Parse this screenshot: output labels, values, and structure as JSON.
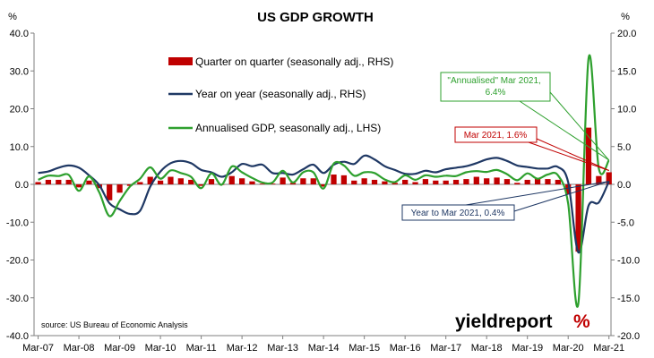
{
  "chart_data": {
    "type": "bar",
    "title": "US GDP GROWTH",
    "left_unit": "%",
    "right_unit": "%",
    "ylim_left": [
      -40,
      40
    ],
    "ylim_right": [
      -20,
      20
    ],
    "yticks_left": [
      "40.0",
      "30.0",
      "20.0",
      "10.0",
      "0.0",
      "-10.0",
      "-20.0",
      "-30.0",
      "-40.0"
    ],
    "yticks_right": [
      "20.0",
      "15.0",
      "10.0",
      "5.0",
      "0.0",
      "-5.0",
      "-10.0",
      "-15.0",
      "-20.0"
    ],
    "xticks": [
      "Mar-07",
      "Mar-08",
      "Mar-09",
      "Mar-10",
      "Mar-11",
      "Mar-12",
      "Mar-13",
      "Mar-14",
      "Mar-15",
      "Mar-16",
      "Mar-17",
      "Mar-18",
      "Mar-19",
      "Mar-20",
      "Mar-21"
    ],
    "grid": false,
    "legend_position": "top-center",
    "colors": {
      "qoq": "#c00000",
      "yoy": "#1f3864",
      "annualised": "#2ea02e"
    },
    "quarters": [
      "Mar-07",
      "Jun-07",
      "Sep-07",
      "Dec-07",
      "Mar-08",
      "Jun-08",
      "Sep-08",
      "Dec-08",
      "Mar-09",
      "Jun-09",
      "Sep-09",
      "Dec-09",
      "Mar-10",
      "Jun-10",
      "Sep-10",
      "Dec-10",
      "Mar-11",
      "Jun-11",
      "Sep-11",
      "Dec-11",
      "Mar-12",
      "Jun-12",
      "Sep-12",
      "Dec-12",
      "Mar-13",
      "Jun-13",
      "Sep-13",
      "Dec-13",
      "Mar-14",
      "Jun-14",
      "Sep-14",
      "Dec-14",
      "Mar-15",
      "Jun-15",
      "Sep-15",
      "Dec-15",
      "Mar-16",
      "Jun-16",
      "Sep-16",
      "Dec-16",
      "Mar-17",
      "Jun-17",
      "Sep-17",
      "Dec-17",
      "Mar-18",
      "Jun-18",
      "Sep-18",
      "Dec-18",
      "Mar-19",
      "Jun-19",
      "Sep-19",
      "Dec-19",
      "Mar-20",
      "Jun-20",
      "Sep-20",
      "Dec-20",
      "Mar-21"
    ],
    "series": [
      {
        "name": "Quarter on quarter (seasonally adj., RHS)",
        "axis": "right",
        "kind": "bar",
        "values": [
          0.3,
          0.6,
          0.6,
          0.6,
          -0.4,
          0.5,
          -0.5,
          -2.1,
          -1.1,
          -0.2,
          0.3,
          1.0,
          0.5,
          1.0,
          0.8,
          0.6,
          -0.2,
          0.7,
          0.0,
          1.1,
          0.8,
          0.4,
          0.1,
          0.1,
          0.9,
          0.2,
          0.8,
          0.8,
          -0.3,
          1.3,
          1.2,
          0.5,
          0.8,
          0.6,
          0.4,
          0.2,
          0.6,
          0.3,
          0.7,
          0.5,
          0.5,
          0.6,
          0.7,
          1.0,
          0.8,
          0.9,
          0.7,
          0.2,
          0.6,
          0.8,
          0.7,
          0.6,
          -1.3,
          -8.9,
          7.5,
          1.1,
          1.6
        ]
      },
      {
        "name": "Year on year (seasonally adj., RHS)",
        "axis": "right",
        "kind": "line",
        "values": [
          1.5,
          1.7,
          2.2,
          2.5,
          2.2,
          1.2,
          -0.1,
          -2.5,
          -3.3,
          -3.9,
          -3.5,
          -0.3,
          1.7,
          2.8,
          3.1,
          2.8,
          1.9,
          1.6,
          1.0,
          1.6,
          2.7,
          2.4,
          2.6,
          1.5,
          1.5,
          1.3,
          2.0,
          2.6,
          1.5,
          2.6,
          3.0,
          2.7,
          3.8,
          3.3,
          2.4,
          1.9,
          1.4,
          1.4,
          1.8,
          1.6,
          2.0,
          2.2,
          2.4,
          2.8,
          3.3,
          3.5,
          3.1,
          2.5,
          2.3,
          2.1,
          2.1,
          2.3,
          0.3,
          -9.0,
          -2.8,
          -2.4,
          0.4
        ]
      },
      {
        "name": "Annualised GDP, seasonally adj., LHS)",
        "axis": "left",
        "kind": "line",
        "values": [
          1.2,
          2.3,
          2.2,
          2.5,
          -1.7,
          2.1,
          -2.1,
          -8.4,
          -4.4,
          -0.6,
          1.5,
          4.5,
          1.5,
          3.7,
          3.0,
          2.0,
          -1.0,
          2.9,
          -0.1,
          4.7,
          3.2,
          1.7,
          0.5,
          0.5,
          3.6,
          0.5,
          3.2,
          3.2,
          -1.1,
          5.5,
          5.0,
          2.3,
          3.2,
          3.0,
          1.3,
          0.6,
          2.4,
          1.2,
          2.4,
          2.0,
          2.3,
          2.2,
          3.2,
          3.5,
          3.3,
          3.8,
          2.7,
          1.1,
          2.9,
          1.5,
          2.6,
          2.4,
          -5.1,
          -31.4,
          33.4,
          4.3,
          6.4
        ]
      }
    ],
    "annotations": [
      {
        "text": "\"Annualised\" Mar 2021, 6.4%",
        "series": "annualised",
        "color": "#2ea02e"
      },
      {
        "text": "Mar 2021, 1.6%",
        "series": "qoq",
        "color": "#c00000"
      },
      {
        "text": "Year to Mar 2021, 0.4%",
        "series": "yoy",
        "color": "#1f3864"
      }
    ]
  },
  "source_note": "source: US Bureau of Economic Analysis",
  "logo": {
    "word": "yieldreport",
    "accent": "%"
  }
}
